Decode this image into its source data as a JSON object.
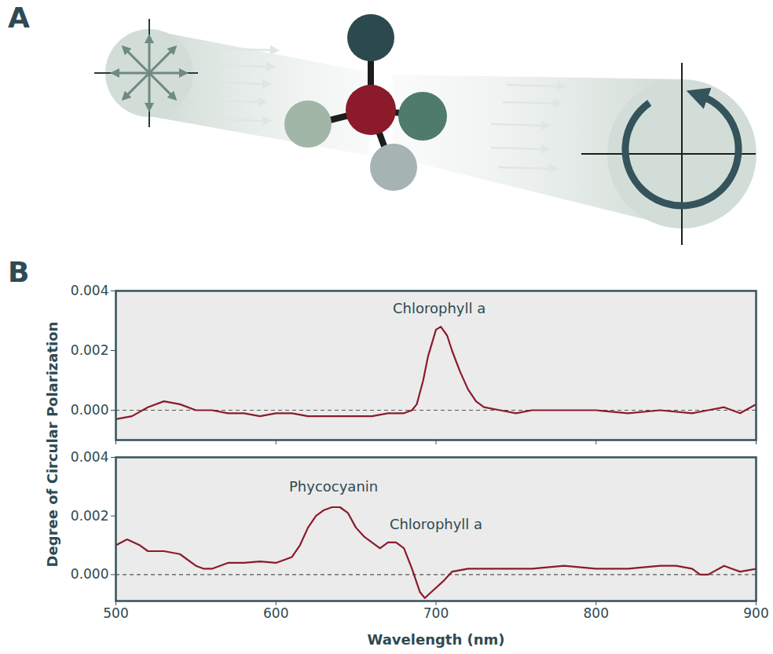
{
  "panel_a": {
    "label": "A"
  },
  "panel_b": {
    "label": "B",
    "ylabel": "Degree of Circular Polarization"
  },
  "chart_data": [
    {
      "type": "line",
      "color": "#8b1a2b",
      "x": [
        500,
        510,
        520,
        530,
        540,
        550,
        560,
        570,
        580,
        590,
        600,
        610,
        620,
        630,
        640,
        650,
        660,
        670,
        680,
        685,
        688,
        692,
        695,
        700,
        703,
        707,
        710,
        715,
        720,
        725,
        730,
        740,
        750,
        760,
        780,
        800,
        820,
        840,
        860,
        870,
        880,
        890,
        900
      ],
      "values": [
        -0.0003,
        -0.0002,
        0.0001,
        0.0003,
        0.0002,
        0.0,
        0.0,
        -0.0001,
        -0.0001,
        -0.0002,
        -0.0001,
        -0.0001,
        -0.0002,
        -0.0002,
        -0.0002,
        -0.0002,
        -0.0002,
        -0.0001,
        -0.0001,
        0.0,
        0.0002,
        0.001,
        0.0018,
        0.0027,
        0.0028,
        0.0025,
        0.002,
        0.0013,
        0.0007,
        0.0003,
        0.0001,
        0.0,
        -0.0001,
        0.0,
        0.0,
        0.0,
        -0.0001,
        0.0,
        -0.0001,
        0.0,
        0.0001,
        -0.0001,
        0.0002
      ],
      "xlim": [
        500,
        900
      ],
      "xticks": [
        500,
        600,
        700,
        800,
        900
      ],
      "ylim": [
        -0.001,
        0.004
      ],
      "yticks": [
        {
          "value": 0,
          "label": "0.000"
        },
        0.002,
        0.004
      ],
      "baseline": 0,
      "tick_labels": "y",
      "annotations": [
        {
          "text": "Chlorophyll a",
          "x": 702,
          "y": 0.0034
        }
      ]
    },
    {
      "type": "line",
      "color": "#8b1a2b",
      "x": [
        500,
        507,
        515,
        520,
        530,
        540,
        550,
        555,
        560,
        570,
        580,
        590,
        600,
        610,
        615,
        620,
        625,
        630,
        635,
        640,
        645,
        650,
        655,
        660,
        665,
        670,
        675,
        680,
        685,
        690,
        693,
        697,
        705,
        710,
        720,
        740,
        760,
        780,
        800,
        820,
        840,
        850,
        860,
        865,
        870,
        880,
        885,
        890,
        900
      ],
      "values": [
        0.001,
        0.0012,
        0.001,
        0.0008,
        0.0008,
        0.0007,
        0.0003,
        0.0002,
        0.0002,
        0.0004,
        0.0004,
        0.00045,
        0.0004,
        0.0006,
        0.001,
        0.0016,
        0.002,
        0.0022,
        0.0023,
        0.0023,
        0.0021,
        0.0016,
        0.0013,
        0.0011,
        0.0009,
        0.0011,
        0.0011,
        0.0009,
        0.0002,
        -0.0006,
        -0.0008,
        -0.0006,
        -0.0002,
        0.0001,
        0.0002,
        0.0002,
        0.0002,
        0.0003,
        0.0002,
        0.0002,
        0.0003,
        0.0003,
        0.0002,
        0.0,
        0.0,
        0.0003,
        0.0002,
        0.0001,
        0.0002
      ],
      "xlim": [
        500,
        900
      ],
      "xticks": [
        500,
        600,
        700,
        800,
        900
      ],
      "ylim": [
        -0.0009,
        0.004
      ],
      "yticks": [
        {
          "value": 0,
          "label": "0.000"
        },
        0.002,
        0.004
      ],
      "baseline": 0,
      "xlabel": "Wavelength (nm)",
      "annotations": [
        {
          "text": "Phycocyanin",
          "x": 636,
          "y": 0.003
        },
        {
          "text": "Chlorophyll a",
          "x": 700,
          "y": 0.0017
        }
      ]
    }
  ]
}
